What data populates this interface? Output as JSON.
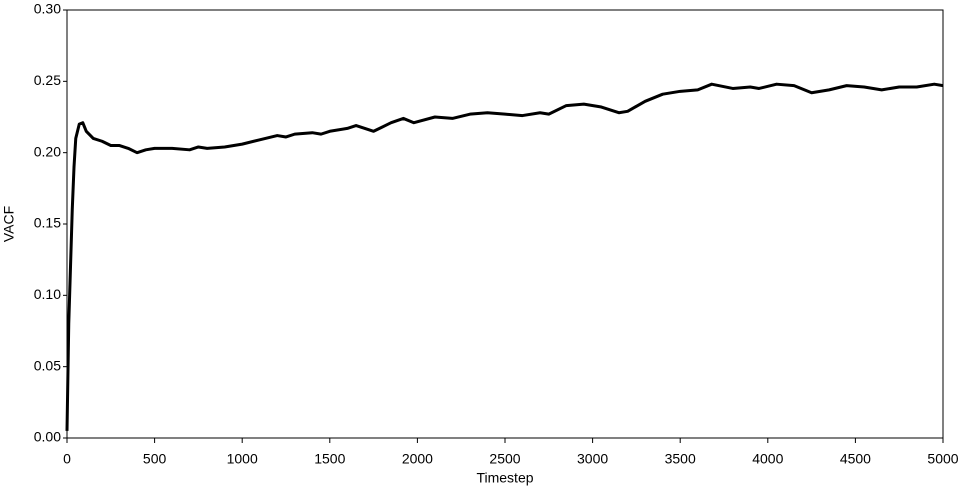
{
  "chart_data": {
    "type": "line",
    "xlabel": "Timestep",
    "ylabel": "VACF",
    "xlim": [
      0,
      5000
    ],
    "xticks": [
      0,
      500,
      1000,
      1500,
      2000,
      2500,
      3000,
      3500,
      4000,
      4500,
      5000
    ],
    "ylim": [
      0,
      0.3
    ],
    "yticks": [
      {
        "value": 0,
        "label": "0.00"
      },
      {
        "value": 0.05,
        "label": "0.05"
      },
      {
        "value": 0.1,
        "label": "0.10"
      },
      {
        "value": 0.15,
        "label": "0.15"
      },
      {
        "value": 0.2,
        "label": "0.20"
      },
      {
        "value": 0.25,
        "label": "0.25"
      },
      {
        "value": 0.3,
        "label": "0.30"
      }
    ],
    "grid": false,
    "series": [
      {
        "color": "#000000",
        "x": [
          0,
          10,
          20,
          30,
          40,
          50,
          70,
          90,
          110,
          150,
          200,
          250,
          300,
          350,
          400,
          450,
          500,
          600,
          700,
          750,
          800,
          900,
          1000,
          1100,
          1200,
          1250,
          1300,
          1400,
          1450,
          1500,
          1600,
          1650,
          1750,
          1850,
          1920,
          1980,
          2100,
          2200,
          2300,
          2400,
          2500,
          2600,
          2700,
          2750,
          2850,
          2950,
          3050,
          3150,
          3200,
          3300,
          3400,
          3500,
          3600,
          3680,
          3800,
          3900,
          3950,
          4050,
          4150,
          4250,
          4350,
          4450,
          4550,
          4650,
          4750,
          4850,
          4950,
          5000
        ],
        "values": [
          0.005,
          0.08,
          0.12,
          0.16,
          0.19,
          0.21,
          0.22,
          0.221,
          0.215,
          0.21,
          0.208,
          0.205,
          0.205,
          0.203,
          0.2,
          0.202,
          0.203,
          0.203,
          0.202,
          0.204,
          0.203,
          0.204,
          0.206,
          0.209,
          0.212,
          0.211,
          0.213,
          0.214,
          0.213,
          0.215,
          0.217,
          0.219,
          0.215,
          0.221,
          0.224,
          0.221,
          0.225,
          0.224,
          0.227,
          0.228,
          0.227,
          0.226,
          0.228,
          0.227,
          0.233,
          0.234,
          0.232,
          0.228,
          0.229,
          0.236,
          0.241,
          0.243,
          0.244,
          0.248,
          0.245,
          0.246,
          0.245,
          0.248,
          0.247,
          0.242,
          0.244,
          0.247,
          0.246,
          0.244,
          0.246,
          0.246,
          0.248,
          0.247
        ]
      }
    ]
  }
}
